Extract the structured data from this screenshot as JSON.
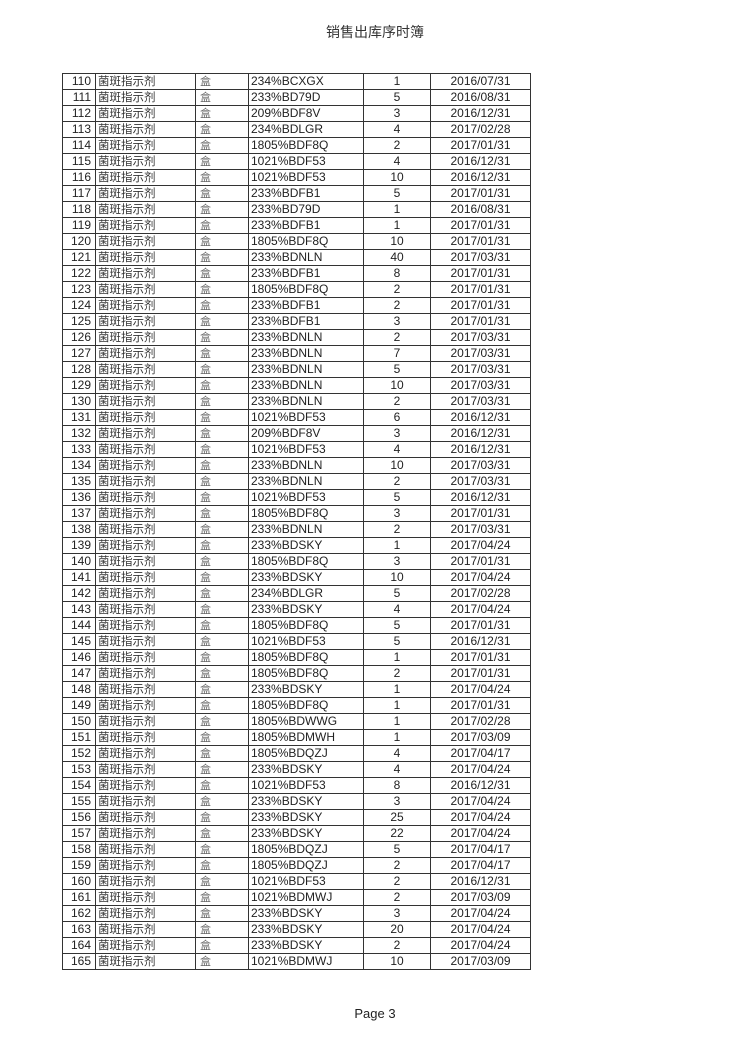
{
  "header": {
    "title": "销售出库序时簿"
  },
  "footer": {
    "page": "Page 3"
  },
  "rows": [
    {
      "no": "110",
      "name": "菌斑指示剂",
      "unit": "盒",
      "code": "234%BCXGX",
      "qty": "1",
      "date": "2016/07/31"
    },
    {
      "no": "111",
      "name": "菌斑指示剂",
      "unit": "盒",
      "code": "233%BD79D",
      "qty": "5",
      "date": "2016/08/31"
    },
    {
      "no": "112",
      "name": "菌斑指示剂",
      "unit": "盒",
      "code": "209%BDF8V",
      "qty": "3",
      "date": "2016/12/31"
    },
    {
      "no": "113",
      "name": "菌斑指示剂",
      "unit": "盒",
      "code": "234%BDLGR",
      "qty": "4",
      "date": "2017/02/28"
    },
    {
      "no": "114",
      "name": "菌斑指示剂",
      "unit": "盒",
      "code": "1805%BDF8Q",
      "qty": "2",
      "date": "2017/01/31"
    },
    {
      "no": "115",
      "name": "菌斑指示剂",
      "unit": "盒",
      "code": "1021%BDF53",
      "qty": "4",
      "date": "2016/12/31"
    },
    {
      "no": "116",
      "name": "菌斑指示剂",
      "unit": "盒",
      "code": "1021%BDF53",
      "qty": "10",
      "date": "2016/12/31"
    },
    {
      "no": "117",
      "name": "菌斑指示剂",
      "unit": "盒",
      "code": "233%BDFB1",
      "qty": "5",
      "date": "2017/01/31"
    },
    {
      "no": "118",
      "name": "菌斑指示剂",
      "unit": "盒",
      "code": "233%BD79D",
      "qty": "1",
      "date": "2016/08/31"
    },
    {
      "no": "119",
      "name": "菌斑指示剂",
      "unit": "盒",
      "code": "233%BDFB1",
      "qty": "1",
      "date": "2017/01/31"
    },
    {
      "no": "120",
      "name": "菌斑指示剂",
      "unit": "盒",
      "code": "1805%BDF8Q",
      "qty": "10",
      "date": "2017/01/31"
    },
    {
      "no": "121",
      "name": "菌斑指示剂",
      "unit": "盒",
      "code": "233%BDNLN",
      "qty": "40",
      "date": "2017/03/31"
    },
    {
      "no": "122",
      "name": "菌斑指示剂",
      "unit": "盒",
      "code": "233%BDFB1",
      "qty": "8",
      "date": "2017/01/31"
    },
    {
      "no": "123",
      "name": "菌斑指示剂",
      "unit": "盒",
      "code": "1805%BDF8Q",
      "qty": "2",
      "date": "2017/01/31"
    },
    {
      "no": "124",
      "name": "菌斑指示剂",
      "unit": "盒",
      "code": "233%BDFB1",
      "qty": "2",
      "date": "2017/01/31"
    },
    {
      "no": "125",
      "name": "菌斑指示剂",
      "unit": "盒",
      "code": "233%BDFB1",
      "qty": "3",
      "date": "2017/01/31"
    },
    {
      "no": "126",
      "name": "菌斑指示剂",
      "unit": "盒",
      "code": "233%BDNLN",
      "qty": "2",
      "date": "2017/03/31"
    },
    {
      "no": "127",
      "name": "菌斑指示剂",
      "unit": "盒",
      "code": "233%BDNLN",
      "qty": "7",
      "date": "2017/03/31"
    },
    {
      "no": "128",
      "name": "菌斑指示剂",
      "unit": "盒",
      "code": "233%BDNLN",
      "qty": "5",
      "date": "2017/03/31"
    },
    {
      "no": "129",
      "name": "菌斑指示剂",
      "unit": "盒",
      "code": "233%BDNLN",
      "qty": "10",
      "date": "2017/03/31"
    },
    {
      "no": "130",
      "name": "菌斑指示剂",
      "unit": "盒",
      "code": "233%BDNLN",
      "qty": "2",
      "date": "2017/03/31"
    },
    {
      "no": "131",
      "name": "菌斑指示剂",
      "unit": "盒",
      "code": "1021%BDF53",
      "qty": "6",
      "date": "2016/12/31"
    },
    {
      "no": "132",
      "name": "菌斑指示剂",
      "unit": "盒",
      "code": "209%BDF8V",
      "qty": "3",
      "date": "2016/12/31"
    },
    {
      "no": "133",
      "name": "菌斑指示剂",
      "unit": "盒",
      "code": "1021%BDF53",
      "qty": "4",
      "date": "2016/12/31"
    },
    {
      "no": "134",
      "name": "菌斑指示剂",
      "unit": "盒",
      "code": "233%BDNLN",
      "qty": "10",
      "date": "2017/03/31"
    },
    {
      "no": "135",
      "name": "菌斑指示剂",
      "unit": "盒",
      "code": "233%BDNLN",
      "qty": "2",
      "date": "2017/03/31"
    },
    {
      "no": "136",
      "name": "菌斑指示剂",
      "unit": "盒",
      "code": "1021%BDF53",
      "qty": "5",
      "date": "2016/12/31"
    },
    {
      "no": "137",
      "name": "菌斑指示剂",
      "unit": "盒",
      "code": "1805%BDF8Q",
      "qty": "3",
      "date": "2017/01/31"
    },
    {
      "no": "138",
      "name": "菌斑指示剂",
      "unit": "盒",
      "code": "233%BDNLN",
      "qty": "2",
      "date": "2017/03/31"
    },
    {
      "no": "139",
      "name": "菌斑指示剂",
      "unit": "盒",
      "code": "233%BDSKY",
      "qty": "1",
      "date": "2017/04/24"
    },
    {
      "no": "140",
      "name": "菌斑指示剂",
      "unit": "盒",
      "code": "1805%BDF8Q",
      "qty": "3",
      "date": "2017/01/31"
    },
    {
      "no": "141",
      "name": "菌斑指示剂",
      "unit": "盒",
      "code": "233%BDSKY",
      "qty": "10",
      "date": "2017/04/24"
    },
    {
      "no": "142",
      "name": "菌斑指示剂",
      "unit": "盒",
      "code": "234%BDLGR",
      "qty": "5",
      "date": "2017/02/28"
    },
    {
      "no": "143",
      "name": "菌斑指示剂",
      "unit": "盒",
      "code": "233%BDSKY",
      "qty": "4",
      "date": "2017/04/24"
    },
    {
      "no": "144",
      "name": "菌斑指示剂",
      "unit": "盒",
      "code": "1805%BDF8Q",
      "qty": "5",
      "date": "2017/01/31"
    },
    {
      "no": "145",
      "name": "菌斑指示剂",
      "unit": "盒",
      "code": "1021%BDF53",
      "qty": "5",
      "date": "2016/12/31"
    },
    {
      "no": "146",
      "name": "菌斑指示剂",
      "unit": "盒",
      "code": "1805%BDF8Q",
      "qty": "1",
      "date": "2017/01/31"
    },
    {
      "no": "147",
      "name": "菌斑指示剂",
      "unit": "盒",
      "code": "1805%BDF8Q",
      "qty": "2",
      "date": "2017/01/31"
    },
    {
      "no": "148",
      "name": "菌斑指示剂",
      "unit": "盒",
      "code": "233%BDSKY",
      "qty": "1",
      "date": "2017/04/24"
    },
    {
      "no": "149",
      "name": "菌斑指示剂",
      "unit": "盒",
      "code": "1805%BDF8Q",
      "qty": "1",
      "date": "2017/01/31"
    },
    {
      "no": "150",
      "name": "菌斑指示剂",
      "unit": "盒",
      "code": "1805%BDWWG",
      "qty": "1",
      "date": "2017/02/28"
    },
    {
      "no": "151",
      "name": "菌斑指示剂",
      "unit": "盒",
      "code": "1805%BDMWH",
      "qty": "1",
      "date": "2017/03/09"
    },
    {
      "no": "152",
      "name": "菌斑指示剂",
      "unit": "盒",
      "code": "1805%BDQZJ",
      "qty": "4",
      "date": "2017/04/17"
    },
    {
      "no": "153",
      "name": "菌斑指示剂",
      "unit": "盒",
      "code": "233%BDSKY",
      "qty": "4",
      "date": "2017/04/24"
    },
    {
      "no": "154",
      "name": "菌斑指示剂",
      "unit": "盒",
      "code": "1021%BDF53",
      "qty": "8",
      "date": "2016/12/31"
    },
    {
      "no": "155",
      "name": "菌斑指示剂",
      "unit": "盒",
      "code": "233%BDSKY",
      "qty": "3",
      "date": "2017/04/24"
    },
    {
      "no": "156",
      "name": "菌斑指示剂",
      "unit": "盒",
      "code": "233%BDSKY",
      "qty": "25",
      "date": "2017/04/24"
    },
    {
      "no": "157",
      "name": "菌斑指示剂",
      "unit": "盒",
      "code": "233%BDSKY",
      "qty": "22",
      "date": "2017/04/24"
    },
    {
      "no": "158",
      "name": "菌斑指示剂",
      "unit": "盒",
      "code": "1805%BDQZJ",
      "qty": "5",
      "date": "2017/04/17"
    },
    {
      "no": "159",
      "name": "菌斑指示剂",
      "unit": "盒",
      "code": "1805%BDQZJ",
      "qty": "2",
      "date": "2017/04/17"
    },
    {
      "no": "160",
      "name": "菌斑指示剂",
      "unit": "盒",
      "code": "1021%BDF53",
      "qty": "2",
      "date": "2016/12/31"
    },
    {
      "no": "161",
      "name": "菌斑指示剂",
      "unit": "盒",
      "code": "1021%BDMWJ",
      "qty": "2",
      "date": "2017/03/09"
    },
    {
      "no": "162",
      "name": "菌斑指示剂",
      "unit": "盒",
      "code": "233%BDSKY",
      "qty": "3",
      "date": "2017/04/24"
    },
    {
      "no": "163",
      "name": "菌斑指示剂",
      "unit": "盒",
      "code": "233%BDSKY",
      "qty": "20",
      "date": "2017/04/24"
    },
    {
      "no": "164",
      "name": "菌斑指示剂",
      "unit": "盒",
      "code": "233%BDSKY",
      "qty": "2",
      "date": "2017/04/24"
    },
    {
      "no": "165",
      "name": "菌斑指示剂",
      "unit": "盒",
      "code": "1021%BDMWJ",
      "qty": "10",
      "date": "2017/03/09"
    }
  ]
}
